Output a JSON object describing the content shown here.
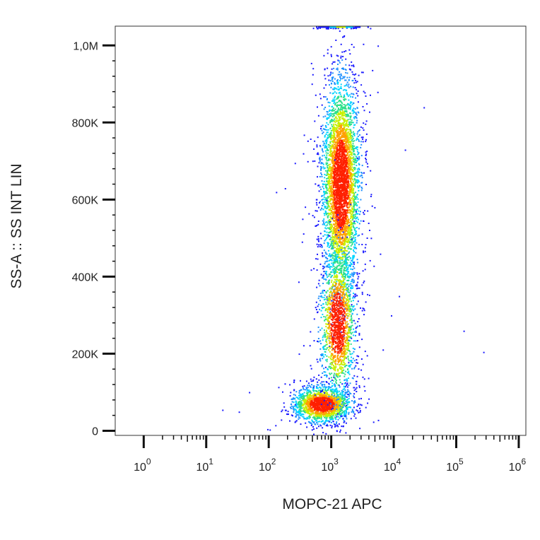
{
  "chart_data": {
    "type": "scatter",
    "style": "density-colored flow cytometry dot plot",
    "xlabel": "MOPC-21  APC",
    "ylabel": "SS-A :: SS INT LIN",
    "x_scale": "log",
    "y_scale": "linear",
    "xlim": [
      0.35,
      1300000
    ],
    "ylim": [
      -12000,
      1050000
    ],
    "grid": false,
    "x_ticks": [
      {
        "value": 1,
        "base": "10",
        "exp": "0"
      },
      {
        "value": 10,
        "base": "10",
        "exp": "1"
      },
      {
        "value": 100,
        "base": "10",
        "exp": "2"
      },
      {
        "value": 1000,
        "base": "10",
        "exp": "3"
      },
      {
        "value": 10000,
        "base": "10",
        "exp": "4"
      },
      {
        "value": 100000,
        "base": "10",
        "exp": "5"
      },
      {
        "value": 1000000,
        "base": "10",
        "exp": "6"
      }
    ],
    "y_ticks": [
      {
        "value": 0,
        "label": "0"
      },
      {
        "value": 200000,
        "label": "200K"
      },
      {
        "value": 400000,
        "label": "400K"
      },
      {
        "value": 600000,
        "label": "600K"
      },
      {
        "value": 800000,
        "label": "800K"
      },
      {
        "value": 1000000,
        "label": "1,0M"
      }
    ],
    "density_colors": [
      "#1a1aff",
      "#1e90ff",
      "#00d4ff",
      "#2ee08a",
      "#c8f000",
      "#ffa000",
      "#ff2000"
    ],
    "populations": [
      {
        "name": "",
        "x_center": 700,
        "y_center": 70000,
        "x_spread_log10": 0.22,
        "y_spread": 22000,
        "points": 1800
      },
      {
        "name": "",
        "x_center": 1400,
        "y_center": 640000,
        "x_spread_log10": 0.14,
        "y_spread": 130000,
        "points": 4200
      },
      {
        "name": "",
        "x_center": 1250,
        "y_center": 280000,
        "x_spread_log10": 0.13,
        "y_spread": 90000,
        "points": 1600
      }
    ],
    "outliers": [
      {
        "x": 18,
        "y": 55000
      },
      {
        "x": 33,
        "y": 50000
      },
      {
        "x": 130,
        "y": 620000
      },
      {
        "x": 180,
        "y": 630000
      },
      {
        "x": 15000,
        "y": 730000
      },
      {
        "x": 30000,
        "y": 840000
      },
      {
        "x": 12000,
        "y": 350000
      },
      {
        "x": 9000,
        "y": 300000
      },
      {
        "x": 130000,
        "y": 260000
      },
      {
        "x": 270000,
        "y": 205000
      },
      {
        "x": 6000,
        "y": 460000
      },
      {
        "x": 5500,
        "y": 1000000
      }
    ]
  }
}
